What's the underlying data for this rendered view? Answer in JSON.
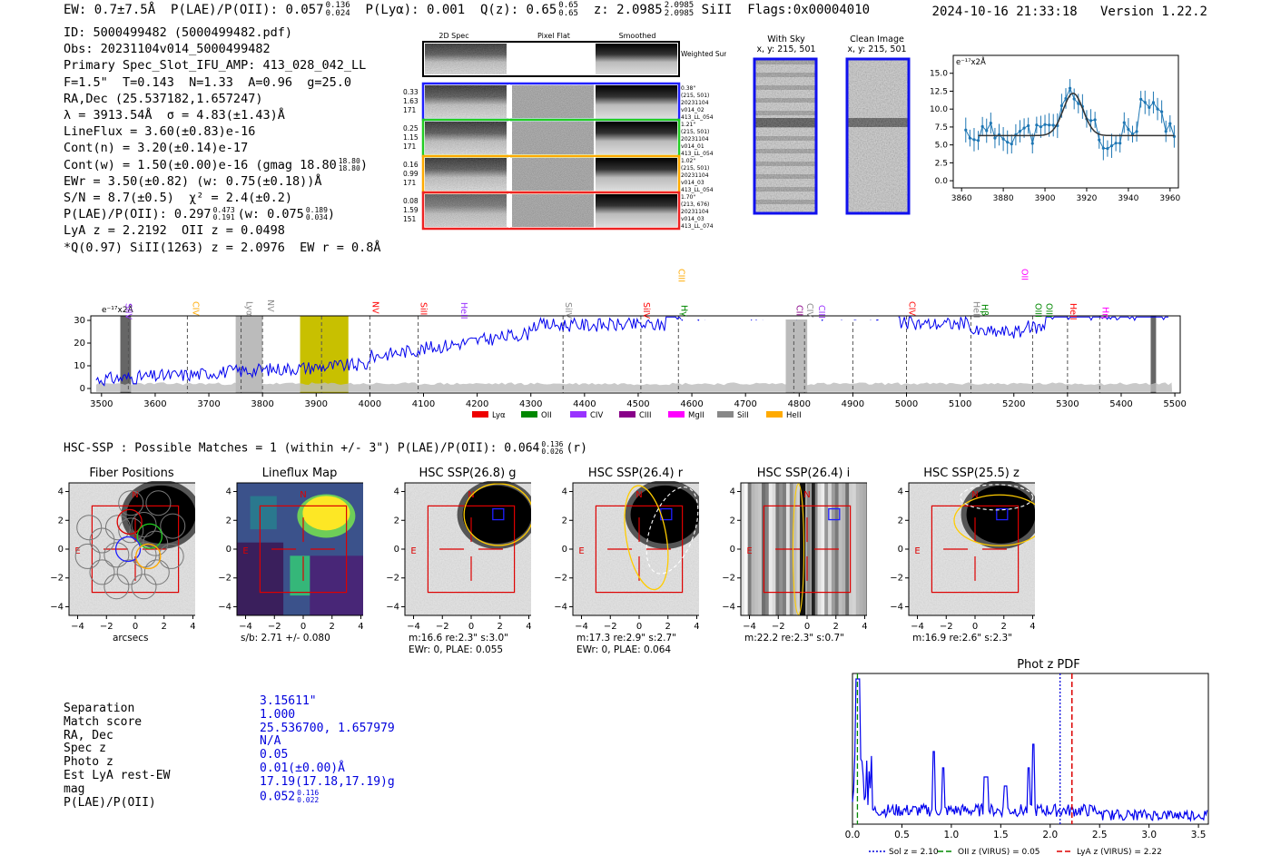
{
  "header": {
    "ew": "EW: 0.7±7.5Å",
    "plae_label": "P(LAE)/P(OII): 0.057",
    "plae_sup": "0.136",
    "plae_sub": "0.024",
    "plya": "P(Lyα): 0.001",
    "qz_label": "Q(z): 0.65",
    "qz_sup": "0.65",
    "qz_sub": "0.65",
    "z_label": "z: 2.0985",
    "z_sup": "2.0985",
    "z_sub": "2.0985",
    "z_line": "SiII",
    "flags": "Flags:0x00004010",
    "timestamp": "2024-10-16 21:33:18",
    "version": "Version 1.22.2"
  },
  "info": {
    "id": "ID: 5000499482 (5000499482.pdf)",
    "obs": "Obs: 20231104v014_5000499482",
    "primary": "Primary Spec_Slot_IFU_AMP: 413_028_042_LL",
    "params": "F=1.5\"  T=0.143  N=1.33  A=0.96  g=25.0",
    "radec": "RA,Dec (25.537182,1.657247)",
    "lambda": "λ = 3913.54Å  σ = 4.83(±1.43)Å",
    "lineflux": "LineFlux = 3.60(±0.83)e-16",
    "contn": "Cont(n) = 3.20(±0.14)e-17",
    "contw_pre": "Cont(w) = 1.50(±0.00)e-16 (gmag 18.80",
    "contw_sup": "18.80",
    "contw_sub": "18.80",
    "contw_post": ")",
    "ewr": "EWr = 3.50(±0.82) (w: 0.75(±0.18))Å",
    "sn": "S/N = 8.7(±0.5)  χ² = 2.4(±0.2)",
    "plae_pre": "P(LAE)/P(OII): 0.297",
    "plae_sup": "0.473",
    "plae_sub": "0.191",
    "plae_mid": "(w: 0.075",
    "plae_w_sup": "0.189",
    "plae_w_sub": "0.034",
    "plae_post": ")",
    "lya": "LyA z = 2.2192  OII z = 0.0498",
    "q": "*Q(0.97) SiII(1263) z = 2.0976  EW r = 0.8Å"
  },
  "thumbs": {
    "col_titles": [
      "2D Spec",
      "Pixel Flat",
      "Smoothed"
    ],
    "weighted_label": "Weighted Sum",
    "rows": [
      {
        "left": [
          "0.33",
          "1.63",
          "171"
        ],
        "right": [
          "0.38\"",
          "(215, 501)",
          "20231104",
          "v014_02",
          "413_LL_054"
        ],
        "color": "#1f1fff"
      },
      {
        "left": [
          "0.25",
          "1.15",
          "171"
        ],
        "right": [
          "1.21\"",
          "(215, 501)",
          "20231104",
          "v014_01",
          "413_LL_054"
        ],
        "color": "#22cc22"
      },
      {
        "left": [
          "0.16",
          "0.99",
          "171"
        ],
        "right": [
          "1.02\"",
          "(215, 501)",
          "20231104",
          "v014_03",
          "413_LL_054"
        ],
        "color": "#ffaa00"
      },
      {
        "left": [
          "0.08",
          "1.59",
          "151"
        ],
        "right": [
          "1.70\"",
          "(213, 676)",
          "20231104",
          "v014_03",
          "413_LL_074"
        ],
        "color": "#ee2222"
      }
    ]
  },
  "sky": {
    "with_sky_title": "With Sky",
    "with_sky_xy": "x, y: 215, 501",
    "clean_title": "Clean Image",
    "clean_xy": "x, y: 215, 501"
  },
  "zoom_chart": {
    "unit": "e⁻¹⁷x2Å",
    "xticks": [
      "3860",
      "3880",
      "3900",
      "3920",
      "3940",
      "3960"
    ],
    "yticks": [
      "0.0",
      "2.5",
      "5.0",
      "7.5",
      "10.0",
      "12.5",
      "15.0"
    ]
  },
  "full_spectrum": {
    "unit": "e⁻¹⁷x2Å",
    "yticks": [
      "0",
      "10",
      "20",
      "30"
    ],
    "xticks": [
      "3500",
      "3600",
      "3700",
      "3800",
      "3900",
      "4000",
      "4100",
      "4200",
      "4300",
      "4400",
      "4500",
      "4600",
      "4700",
      "4800",
      "4900",
      "5000",
      "5100",
      "5200",
      "5300",
      "5400",
      "5500"
    ],
    "lines": [
      {
        "label": "SiIV",
        "color": "#9933ff"
      },
      {
        "label": "CIV",
        "color": "#ffaa00"
      },
      {
        "label": "Lyα",
        "color": "#888888"
      },
      {
        "label": "NV",
        "color": "#888888"
      },
      {
        "label": "NV",
        "color": "#ff0000"
      },
      {
        "label": "SiII",
        "color": "#ff0000"
      },
      {
        "label": "HeII",
        "color": "#9933ff"
      },
      {
        "label": "SiIV",
        "color": "#888888"
      },
      {
        "label": "SiIV",
        "color": "#ff0000"
      },
      {
        "label": "Hγ",
        "color": "#008800"
      },
      {
        "label": "CIII",
        "color": "#ffaa00"
      },
      {
        "label": "CII",
        "color": "#880088"
      },
      {
        "label": "CIV",
        "color": "#888888"
      },
      {
        "label": "CIII",
        "color": "#9933ff"
      },
      {
        "label": "CIV",
        "color": "#ff0000"
      },
      {
        "label": "HeII",
        "color": "#888888"
      },
      {
        "label": "Hβ",
        "color": "#008800"
      },
      {
        "label": "OII",
        "color": "#ff00ff"
      },
      {
        "label": "OIII",
        "color": "#008800"
      },
      {
        "label": "OIII",
        "color": "#008800"
      },
      {
        "label": "HeII",
        "color": "#ff0000"
      },
      {
        "label": "Hη",
        "color": "#ff00ff"
      }
    ],
    "legend": [
      {
        "label": "Lyα",
        "color": "#ee0000"
      },
      {
        "label": "OII",
        "color": "#008800"
      },
      {
        "label": "CIV",
        "color": "#9933ff"
      },
      {
        "label": "CIII",
        "color": "#880088"
      },
      {
        "label": "MgII",
        "color": "#ff00ff"
      },
      {
        "label": "SiII",
        "color": "#888888"
      },
      {
        "label": "HeII",
        "color": "#ffaa00"
      }
    ]
  },
  "match": {
    "text": "HSC-SSP : Possible Matches = 1 (within +/- 3\")  P(LAE)/P(OII): 0.064",
    "sup": "0.136",
    "sub": "0.026",
    "post": "(r)"
  },
  "cutouts": [
    {
      "title": "Fiber Positions",
      "caption": "arcsecs"
    },
    {
      "title": "Lineflux Map",
      "caption": "s/b: 2.71 +/- 0.080"
    },
    {
      "title": "HSC SSP(26.8) g",
      "caption": "m:16.6  re:2.3\"  s:3.0\"",
      "caption2": "EWr: 0, PLAE: 0.055"
    },
    {
      "title": "HSC SSP(26.4) r",
      "caption": "m:17.3  re:2.9\"  s:2.7\"",
      "caption2": "EWr: 0, PLAE: 0.064"
    },
    {
      "title": "HSC SSP(26.4) i",
      "caption": "m:22.2  re:2.3\"  s:0.7\""
    },
    {
      "title": "HSC SSP(25.5) z",
      "caption": "m:16.9  re:2.6\"  s:2.3\""
    }
  ],
  "cutout_axes": {
    "ticks": [
      "−4",
      "−2",
      "0",
      "2",
      "4"
    ],
    "north": "N",
    "east": "E"
  },
  "table": {
    "rows": [
      {
        "key": "Separation",
        "value": "3.15611\""
      },
      {
        "key": "Match score",
        "value": "1.000"
      },
      {
        "key": "RA, Dec",
        "value": "25.536700, 1.657979"
      },
      {
        "key": "Spec z",
        "value": "N/A"
      },
      {
        "key": "Photo z",
        "value": "0.05"
      },
      {
        "key": "Est LyA rest-EW",
        "value": "0.01(±0.00)Å"
      },
      {
        "key": "mag",
        "value": "17.19(17.18,17.19)g"
      }
    ],
    "plae_key": "P(LAE)/P(OII)",
    "plae_value": "0.052",
    "plae_sup": "0.116",
    "plae_sub": "0.022"
  },
  "photz": {
    "title": "Phot z PDF",
    "xticks": [
      "0.0",
      "0.5",
      "1.0",
      "1.5",
      "2.0",
      "2.5",
      "3.0",
      "3.5"
    ],
    "legend": [
      {
        "label": "Sol z = 2.10",
        "color": "#0000dd",
        "dash": "2,2"
      },
      {
        "label": "OII z (VIRUS) = 0.05",
        "color": "#008800",
        "dash": "6,3"
      },
      {
        "label": "LyA z (VIRUS) = 2.22",
        "color": "#dd0000",
        "dash": "6,3"
      }
    ]
  }
}
